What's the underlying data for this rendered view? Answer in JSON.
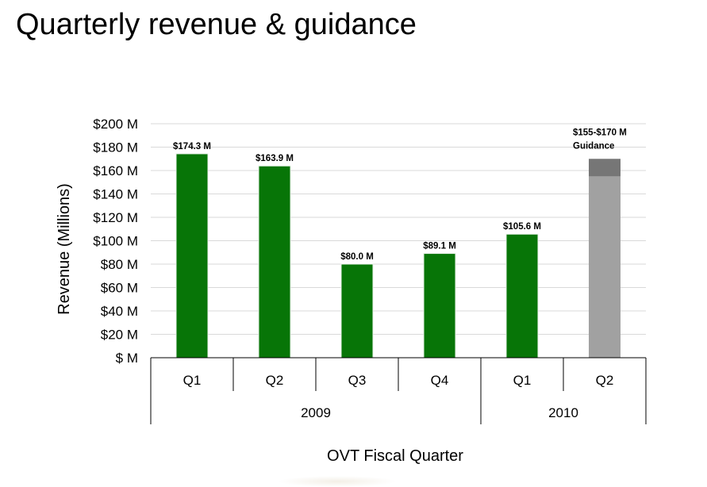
{
  "title": "Quarterly revenue & guidance",
  "chart_data": {
    "type": "bar",
    "title": "Quarterly revenue & guidance",
    "xlabel": "OVT Fiscal Quarter",
    "ylabel": "Revenue (Millions)",
    "ylim": [
      0,
      200
    ],
    "yticks": [
      {
        "value": 0,
        "label": "$ M"
      },
      {
        "value": 20,
        "label": "$20 M"
      },
      {
        "value": 40,
        "label": "$40 M"
      },
      {
        "value": 60,
        "label": "$60 M"
      },
      {
        "value": 80,
        "label": "$80 M"
      },
      {
        "value": 100,
        "label": "$100 M"
      },
      {
        "value": 120,
        "label": "$120 M"
      },
      {
        "value": 140,
        "label": "$140 M"
      },
      {
        "value": 160,
        "label": "$160 M"
      },
      {
        "value": 180,
        "label": "$180 M"
      },
      {
        "value": 200,
        "label": "$200 M"
      }
    ],
    "grid": true,
    "categories": [
      "Q1",
      "Q2",
      "Q3",
      "Q4",
      "Q1",
      "Q2"
    ],
    "groups": [
      {
        "label": "2009",
        "span": 4
      },
      {
        "label": "2010",
        "span": 2
      }
    ],
    "bars": [
      {
        "category": "Q1",
        "year": "2009",
        "value": 174.3,
        "label": "$174.3 M",
        "color": "#077507"
      },
      {
        "category": "Q2",
        "year": "2009",
        "value": 163.9,
        "label": "$163.9 M",
        "color": "#077507"
      },
      {
        "category": "Q3",
        "year": "2009",
        "value": 80.0,
        "label": "$80.0 M",
        "color": "#077507"
      },
      {
        "category": "Q4",
        "year": "2009",
        "value": 89.1,
        "label": "$89.1 M",
        "color": "#077507"
      },
      {
        "category": "Q1",
        "year": "2010",
        "value": 105.6,
        "label": "$105.6 M",
        "color": "#077507"
      },
      {
        "category": "Q2",
        "year": "2010",
        "value_low": 155,
        "value_high": 170,
        "label_line1": "$155-$170 M",
        "label_line2": "Guidance",
        "color_low": "#a1a1a1",
        "color_high": "#767676"
      }
    ]
  }
}
